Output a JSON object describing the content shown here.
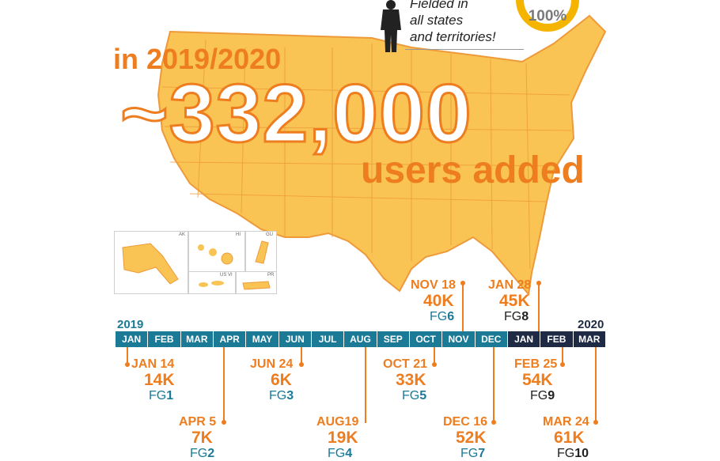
{
  "headline": {
    "year_title": "in 2019/2020",
    "big_number": "~332,000",
    "subtitle": "users added"
  },
  "fielded_note": [
    "Fielded in",
    "all states",
    "and territories!"
  ],
  "badge_percent": "100%",
  "inset_labels": [
    "AK",
    "HI",
    "GU",
    "US VI",
    "PR"
  ],
  "timeline": {
    "start_year": "2019",
    "end_year": "2020",
    "months": [
      "JAN",
      "FEB",
      "MAR",
      "APR",
      "MAY",
      "JUN",
      "JUL",
      "AUG",
      "SEP",
      "OCT",
      "NOV",
      "DEC",
      "JAN",
      "FEB",
      "MAR"
    ]
  },
  "events": [
    {
      "date": "JAN 14",
      "users": "14K",
      "fg_prefix": "FG",
      "fg_num": "1"
    },
    {
      "date": "APR 5",
      "users": "7K",
      "fg_prefix": "FG",
      "fg_num": "2"
    },
    {
      "date": "JUN 24",
      "users": "6K",
      "fg_prefix": "FG",
      "fg_num": "3"
    },
    {
      "date": "AUG19",
      "users": "19K",
      "fg_prefix": "FG",
      "fg_num": "4"
    },
    {
      "date": "OCT 21",
      "users": "33K",
      "fg_prefix": "FG",
      "fg_num": "5"
    },
    {
      "date": "NOV 18",
      "users": "40K",
      "fg_prefix": "FG",
      "fg_num": "6"
    },
    {
      "date": "DEC 16",
      "users": "52K",
      "fg_prefix": "FG",
      "fg_num": "7"
    },
    {
      "date": "JAN 28",
      "users": "45K",
      "fg_prefix": "FG",
      "fg_num": "8"
    },
    {
      "date": "FEB 25",
      "users": "54K",
      "fg_prefix": "FG",
      "fg_num": "9"
    },
    {
      "date": "MAR 24",
      "users": "61K",
      "fg_prefix": "FG",
      "fg_num": "10"
    }
  ],
  "colors": {
    "orange": "#ee7d1f",
    "teal": "#1b7a96",
    "navy": "#1f2a44",
    "map": "#f9c454"
  }
}
